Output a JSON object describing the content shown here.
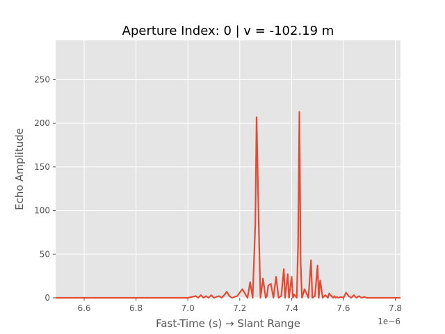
{
  "chart_data": {
    "type": "line",
    "title": "Aperture Index: 0  |  v = -102.19 m",
    "xlabel": "Fast-Time (s) → Slant Range",
    "ylabel": "Echo Amplitude",
    "x_offset_label": "1e−6",
    "x_tick_labels": [
      "6.6",
      "6.8",
      "7.0",
      "7.2",
      "7.4",
      "7.6",
      "7.8"
    ],
    "x_ticks": [
      6.6,
      6.8,
      7.0,
      7.2,
      7.4,
      7.6,
      7.8
    ],
    "y_ticks": [
      0,
      50,
      100,
      150,
      200,
      250
    ],
    "xlim": [
      6.49,
      7.82
    ],
    "ylim": [
      0,
      295
    ],
    "grid": true,
    "series": [
      {
        "color": "#E24A33",
        "x": [
          6.49,
          7.0,
          7.03,
          7.04,
          7.05,
          7.06,
          7.07,
          7.08,
          7.09,
          7.1,
          7.12,
          7.13,
          7.14,
          7.15,
          7.16,
          7.17,
          7.19,
          7.21,
          7.22,
          7.23,
          7.24,
          7.25,
          7.26,
          7.265,
          7.275,
          7.28,
          7.29,
          7.3,
          7.305,
          7.31,
          7.32,
          7.33,
          7.34,
          7.35,
          7.36,
          7.37,
          7.375,
          7.385,
          7.39,
          7.4,
          7.405,
          7.41,
          7.42,
          7.425,
          7.43,
          7.435,
          7.44,
          7.45,
          7.465,
          7.475,
          7.48,
          7.49,
          7.5,
          7.505,
          7.51,
          7.52,
          7.53,
          7.54,
          7.545,
          7.55,
          7.56,
          7.565,
          7.57,
          7.575,
          7.58,
          7.59,
          7.6,
          7.61,
          7.62,
          7.63,
          7.64,
          7.65,
          7.66,
          7.67,
          7.68,
          7.69,
          7.7,
          7.71,
          7.72,
          7.73,
          7.74,
          7.75,
          7.76,
          7.77,
          7.78,
          7.79,
          7.8,
          7.82
        ],
        "y": [
          0,
          0,
          2,
          0,
          3,
          0,
          2,
          0,
          3,
          0,
          2,
          0,
          3,
          7,
          2,
          0,
          2,
          10,
          5,
          0,
          18,
          0,
          85,
          207,
          60,
          0,
          22,
          0,
          2,
          14,
          16,
          0,
          24,
          0,
          2,
          33,
          0,
          27,
          0,
          24,
          0,
          4,
          0,
          60,
          213,
          40,
          0,
          10,
          0,
          43,
          0,
          2,
          37,
          0,
          20,
          0,
          3,
          0,
          5,
          3,
          0,
          2,
          0,
          1,
          0,
          1,
          0,
          6,
          2,
          0,
          3,
          0,
          2,
          0,
          1,
          0,
          0,
          0,
          0,
          0,
          0,
          0,
          0,
          0,
          0,
          0,
          0,
          0
        ]
      }
    ]
  }
}
